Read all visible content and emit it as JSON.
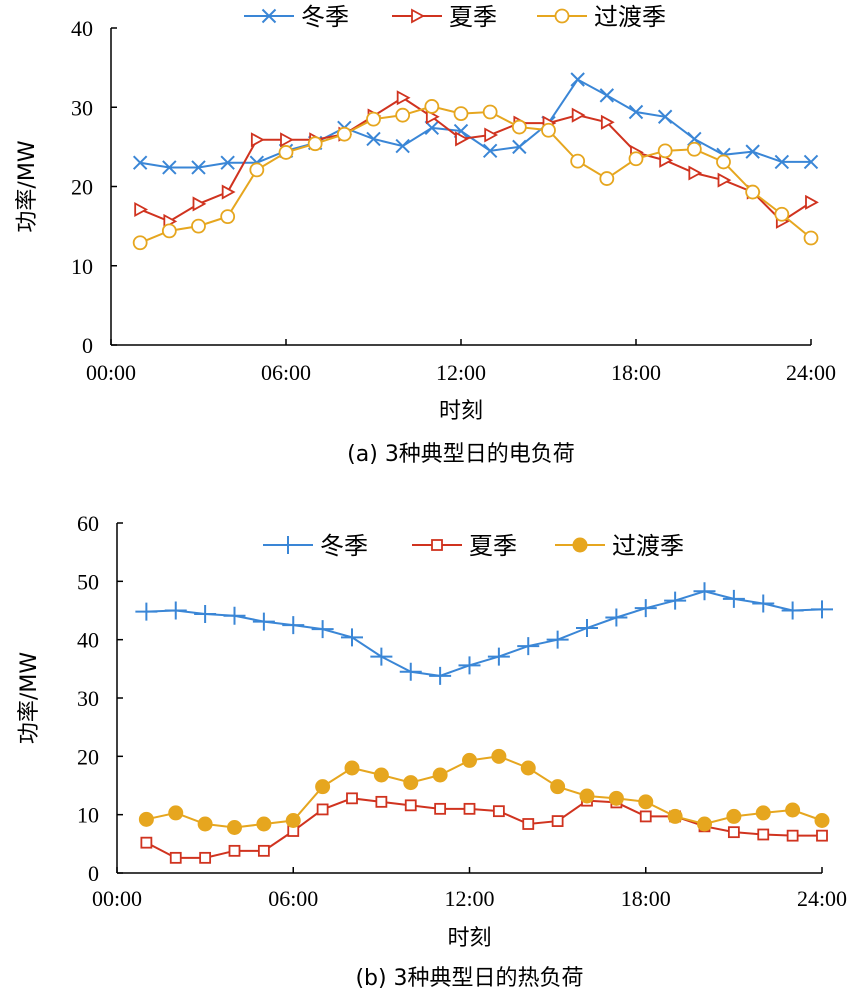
{
  "chart_data": [
    {
      "type": "line",
      "caption": "(a) 3种典型日的电负荷",
      "xlabel": "时刻",
      "ylabel": "功率/MW",
      "xlim": [
        0,
        24
      ],
      "ylim": [
        0,
        40
      ],
      "x_ticks": [
        "00:00",
        "06:00",
        "12:00",
        "18:00",
        "24:00"
      ],
      "y_ticks": [
        "0",
        "10",
        "20",
        "30",
        "40"
      ],
      "legend_position": "top",
      "x": [
        1,
        2,
        3,
        4,
        5,
        6,
        7,
        8,
        9,
        10,
        11,
        12,
        13,
        14,
        15,
        16,
        17,
        18,
        19,
        20,
        21,
        22,
        23,
        24
      ],
      "series": [
        {
          "name": "冬季",
          "color": "#3a86d6",
          "marker": "x",
          "values": [
            23.0,
            22.4,
            22.4,
            23.0,
            23.0,
            24.5,
            25.5,
            27.4,
            26.0,
            25.1,
            27.4,
            27.0,
            24.5,
            25.0,
            28.0,
            33.5,
            31.5,
            29.4,
            28.8,
            26.0,
            24.0,
            24.4,
            23.1,
            23.1
          ]
        },
        {
          "name": "夏季",
          "color": "#d0331f",
          "marker": "triangle-right",
          "values": [
            17.1,
            15.6,
            17.8,
            19.3,
            25.9,
            25.9,
            25.9,
            26.6,
            28.9,
            31.2,
            28.8,
            26.0,
            26.5,
            28.0,
            28.0,
            29.0,
            28.1,
            24.3,
            23.3,
            21.7,
            20.8,
            19.3,
            15.6,
            18.0
          ]
        },
        {
          "name": "过渡季",
          "color": "#e6a61f",
          "marker": "circle-open",
          "values": [
            12.9,
            14.4,
            15.0,
            16.2,
            22.1,
            24.3,
            25.4,
            26.6,
            28.5,
            29.0,
            30.1,
            29.2,
            29.4,
            27.5,
            27.1,
            23.2,
            21.0,
            23.5,
            24.5,
            24.7,
            23.1,
            19.3,
            16.5,
            13.5
          ]
        }
      ]
    },
    {
      "type": "line",
      "caption": "(b) 3种典型日的热负荷",
      "xlabel": "时刻",
      "ylabel": "功率/MW",
      "xlim": [
        0,
        24
      ],
      "ylim": [
        0,
        60
      ],
      "x_ticks": [
        "00:00",
        "06:00",
        "12:00",
        "18:00",
        "24:00"
      ],
      "y_ticks": [
        "0",
        "10",
        "20",
        "30",
        "40",
        "50",
        "60"
      ],
      "legend_position": "top",
      "x": [
        1,
        2,
        3,
        4,
        5,
        6,
        7,
        8,
        9,
        10,
        11,
        12,
        13,
        14,
        15,
        16,
        17,
        18,
        19,
        20,
        21,
        22,
        23,
        24
      ],
      "series": [
        {
          "name": "冬季",
          "color": "#3a86d6",
          "marker": "plus",
          "values": [
            44.8,
            45.0,
            44.4,
            44.1,
            43.1,
            42.5,
            41.8,
            40.4,
            37.1,
            34.5,
            33.8,
            35.6,
            37.1,
            38.9,
            40.0,
            42.0,
            43.8,
            45.4,
            46.7,
            48.3,
            47.0,
            46.2,
            45.0,
            45.2
          ]
        },
        {
          "name": "夏季",
          "color": "#d0331f",
          "marker": "square-open",
          "values": [
            5.2,
            2.6,
            2.6,
            3.8,
            3.8,
            7.2,
            10.9,
            12.8,
            12.2,
            11.6,
            11.0,
            11.0,
            10.6,
            8.4,
            8.9,
            12.4,
            12.1,
            9.7,
            9.7,
            8.0,
            7.0,
            6.6,
            6.4,
            6.4
          ]
        },
        {
          "name": "过渡季",
          "color": "#e6a61f",
          "marker": "circle-filled",
          "values": [
            9.2,
            10.3,
            8.4,
            7.8,
            8.4,
            9.0,
            14.8,
            18.0,
            16.8,
            15.5,
            16.8,
            19.3,
            20.0,
            18.0,
            14.8,
            13.2,
            12.8,
            12.2,
            9.7,
            8.4,
            9.7,
            10.3,
            10.8,
            9.0
          ]
        }
      ]
    }
  ]
}
